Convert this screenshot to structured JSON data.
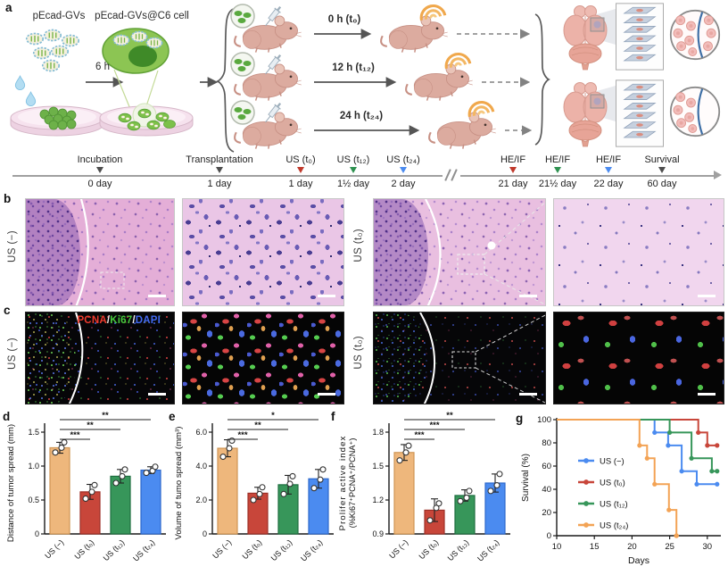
{
  "colors": {
    "tan": "#eeb77c",
    "red": "#c8463a",
    "green": "#37965a",
    "blue": "#4b8bf0",
    "orange": "#f3a355",
    "axis": "#1a1a1a",
    "timeline_line": "#a0a0a0"
  },
  "panel_a": {
    "label": "a",
    "gv_label": "pEcad-GVs",
    "cell_label": "pEcad-GVs@C6 cell",
    "incubation_time": "6 h",
    "injection_times": [
      "0 h (t₀)",
      "12 h (t₁₂)",
      "24 h (t₂₄)"
    ],
    "timeline": {
      "events": [
        {
          "label": "Incubation",
          "day": "0 day",
          "color": "#4d4d4d"
        },
        {
          "label": "Transplantation",
          "day": "1 day",
          "color": "#4d4d4d"
        },
        {
          "label": "US (t₀)",
          "day": "1 day",
          "color": "#c0392b"
        },
        {
          "label": "US (t₁₂)",
          "day": "1½ day",
          "color": "#2e9150"
        },
        {
          "label": "US (t₂₄)",
          "day": "2 day",
          "color": "#4b8bf0"
        },
        {
          "label": "HE/IF",
          "day": "21 day",
          "color": "#c0392b"
        },
        {
          "label": "HE/IF",
          "day": "21½ day",
          "color": "#2e9150"
        },
        {
          "label": "HE/IF",
          "day": "22 day",
          "color": "#4b8bf0"
        },
        {
          "label": "Survival",
          "day": "60 day",
          "color": "#4d4d4d"
        }
      ]
    }
  },
  "panel_b": {
    "label": "b",
    "groups": [
      "US (−)",
      "US (t₀)"
    ]
  },
  "panel_c": {
    "label": "c",
    "groups": [
      "US (−)",
      "US (t₀)"
    ],
    "stain_labels": [
      {
        "text": "PCNA",
        "color": "#ee3b2e"
      },
      {
        "text": "/",
        "color": "#f0f0f0"
      },
      {
        "text": "Ki67",
        "color": "#46c83c"
      },
      {
        "text": "/",
        "color": "#f0f0f0"
      },
      {
        "text": "DAPI",
        "color": "#4169f0"
      }
    ]
  },
  "chart_data": [
    {
      "id": "d",
      "panel_label": "d",
      "type": "bar",
      "ylabel": "Distance of tumor spread (mm)",
      "categories": [
        "US (−)",
        "US (t₀)",
        "US (t₁₂)",
        "US (t₂₄)"
      ],
      "values": [
        1.27,
        0.62,
        0.85,
        0.94
      ],
      "errors": [
        0.08,
        0.11,
        0.1,
        0.05
      ],
      "points": [
        [
          1.2,
          1.27,
          1.35
        ],
        [
          0.52,
          0.62,
          0.72
        ],
        [
          0.75,
          0.85,
          0.95
        ],
        [
          0.9,
          0.93,
          0.99
        ]
      ],
      "ylim": [
        0,
        1.5
      ],
      "yticks": [
        0,
        0.5,
        1,
        1.5
      ],
      "ytick_labels": [
        "0",
        "0.5",
        "1.0",
        "1.5"
      ],
      "colors": [
        "#eeb77c",
        "#c8463a",
        "#37965a",
        "#4b8bf0"
      ],
      "edge_colors": [
        "#cf9554",
        "#9c2f27",
        "#1e6f40",
        "#2d68cc"
      ],
      "significance": [
        {
          "from": 0,
          "to": 1,
          "label": "***"
        },
        {
          "from": 0,
          "to": 2,
          "label": "**"
        },
        {
          "from": 0,
          "to": 3,
          "label": "**"
        }
      ]
    },
    {
      "id": "e",
      "panel_label": "e",
      "type": "bar",
      "ylabel": "Volume of tumo spread (mm³)",
      "categories": [
        "US (−)",
        "US (t₀)",
        "US (t₁₂)",
        "US (t₂₄)"
      ],
      "values": [
        5.05,
        2.4,
        2.9,
        3.25
      ],
      "errors": [
        0.5,
        0.35,
        0.55,
        0.55
      ],
      "points": [
        [
          4.55,
          5.05,
          5.5
        ],
        [
          2.0,
          2.35,
          2.75
        ],
        [
          2.35,
          2.95,
          3.4
        ],
        [
          2.7,
          3.2,
          3.8
        ]
      ],
      "ylim": [
        0,
        6
      ],
      "yticks": [
        0,
        2,
        4,
        6
      ],
      "ytick_labels": [
        "0",
        "2.0",
        "4.0",
        "6.0"
      ],
      "colors": [
        "#eeb77c",
        "#c8463a",
        "#37965a",
        "#4b8bf0"
      ],
      "edge_colors": [
        "#cf9554",
        "#9c2f27",
        "#1e6f40",
        "#2d68cc"
      ],
      "significance": [
        {
          "from": 0,
          "to": 1,
          "label": "***"
        },
        {
          "from": 0,
          "to": 2,
          "label": "**"
        },
        {
          "from": 0,
          "to": 3,
          "label": "*"
        }
      ]
    },
    {
      "id": "f",
      "panel_label": "f",
      "type": "bar",
      "ylabel": "Prolifer active index",
      "ylabel2": "(%Ki67⁺PCNA⁺/PCNA⁺)",
      "categories": [
        "US (−)",
        "US (t₀)",
        "US (t₁₂)",
        "US (t₂₄)"
      ],
      "values": [
        1.62,
        1.11,
        1.24,
        1.35
      ],
      "errors": [
        0.07,
        0.1,
        0.05,
        0.08
      ],
      "points": [
        [
          1.55,
          1.62,
          1.68
        ],
        [
          1.02,
          1.13,
          1.17
        ],
        [
          1.19,
          1.22,
          1.28
        ],
        [
          1.28,
          1.33,
          1.43
        ]
      ],
      "ylim": [
        0.9,
        1.8
      ],
      "yticks": [
        0.9,
        1.2,
        1.5,
        1.8
      ],
      "ytick_labels": [
        "0.9",
        "1.2",
        "1.5",
        "1.8"
      ],
      "colors": [
        "#eeb77c",
        "#c8463a",
        "#37965a",
        "#4b8bf0"
      ],
      "edge_colors": [
        "#cf9554",
        "#9c2f27",
        "#1e6f40",
        "#2d68cc"
      ],
      "significance": [
        {
          "from": 0,
          "to": 1,
          "label": "***"
        },
        {
          "from": 0,
          "to": 2,
          "label": "***"
        },
        {
          "from": 0,
          "to": 3,
          "label": "**"
        }
      ]
    },
    {
      "id": "g",
      "panel_label": "g",
      "type": "step",
      "xlabel": "Days",
      "ylabel": "Survival (%)",
      "xlim": [
        10,
        31.8
      ],
      "xticks": [
        10,
        15,
        20,
        25,
        30
      ],
      "xtick_labels": [
        "10",
        "15",
        "20",
        "25",
        "30"
      ],
      "ylim": [
        0,
        100
      ],
      "yticks": [
        0,
        20,
        40,
        60,
        80,
        100
      ],
      "ytick_labels": [
        "0",
        "20",
        "40",
        "60",
        "80",
        "100"
      ],
      "legend_position": "left-middle",
      "series": [
        {
          "name": "US (−)",
          "color": "#4b8bf0",
          "points": [
            [
              10,
              100
            ],
            [
              23,
              100
            ],
            [
              23,
              88.9
            ],
            [
              24.8,
              88.9
            ],
            [
              24.8,
              77.8
            ],
            [
              26.6,
              77.8
            ],
            [
              26.6,
              55.6
            ],
            [
              28.6,
              55.6
            ],
            [
              28.6,
              44.4
            ],
            [
              31.3,
              44.4
            ]
          ]
        },
        {
          "name": "US (t₀)",
          "color": "#c8463a",
          "points": [
            [
              10,
              100
            ],
            [
              28.8,
              100
            ],
            [
              28.8,
              88.9
            ],
            [
              30,
              88.9
            ],
            [
              30,
              77.8
            ],
            [
              31.3,
              77.8
            ]
          ]
        },
        {
          "name": "US (t₁₂)",
          "color": "#37965a",
          "points": [
            [
              10,
              100
            ],
            [
              25,
              100
            ],
            [
              25,
              88.9
            ],
            [
              27.9,
              88.9
            ],
            [
              27.9,
              66.7
            ],
            [
              30.6,
              66.7
            ],
            [
              30.6,
              55.6
            ],
            [
              31.3,
              55.6
            ]
          ]
        },
        {
          "name": "US (t₂₄)",
          "color": "#f3a355",
          "points": [
            [
              10,
              100
            ],
            [
              21,
              100
            ],
            [
              21,
              77.8
            ],
            [
              22,
              77.8
            ],
            [
              22,
              66.7
            ],
            [
              23,
              66.7
            ],
            [
              23,
              44.4
            ],
            [
              24.9,
              44.4
            ],
            [
              24.9,
              22.2
            ],
            [
              25.9,
              22.2
            ],
            [
              25.9,
              0
            ]
          ]
        }
      ]
    }
  ]
}
